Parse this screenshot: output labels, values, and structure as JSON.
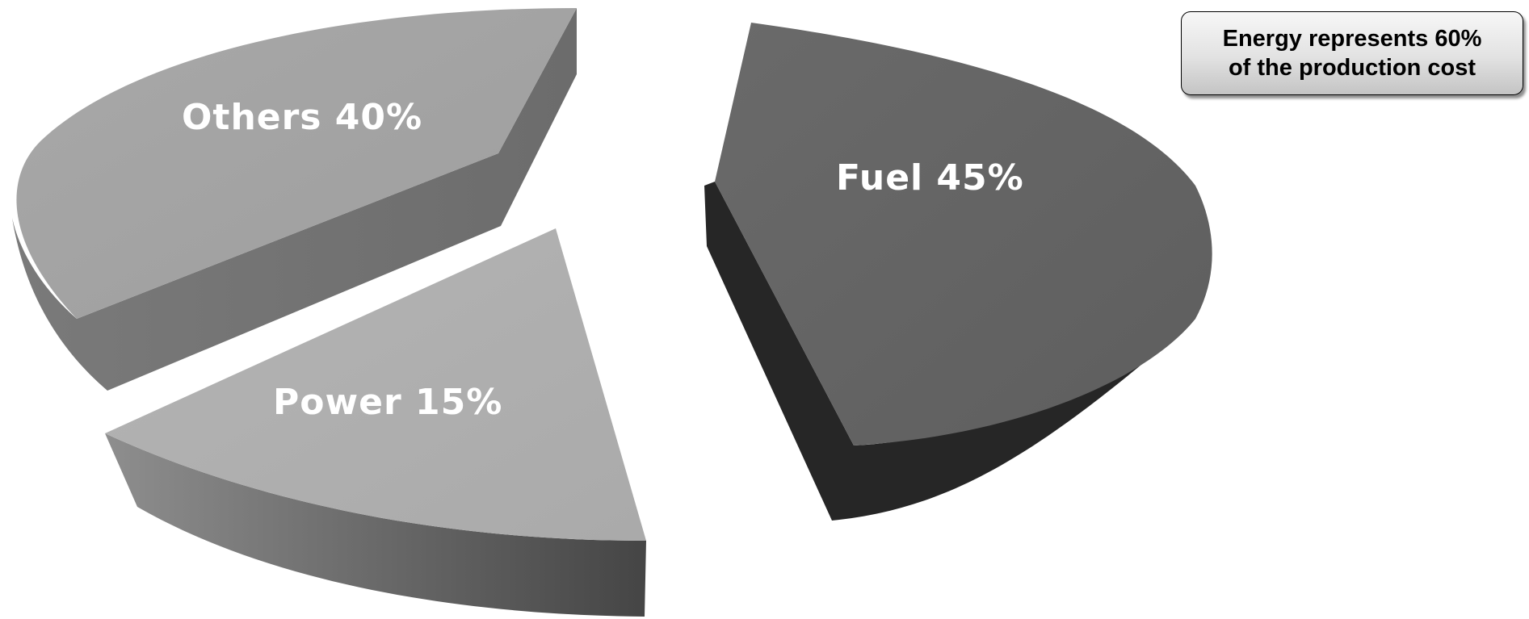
{
  "chart_data": {
    "type": "pie",
    "title": "",
    "slices": [
      {
        "label": "Fuel 45%",
        "category": "Fuel",
        "value": 45,
        "color": "#636363"
      },
      {
        "label": "Power 15%",
        "category": "Power",
        "value": 15,
        "color": "#b0b0b0"
      },
      {
        "label": "Others 40%",
        "category": "Others",
        "value": 40,
        "color": "#a2a2a2"
      }
    ],
    "style": "3d-exploded",
    "legend": "none"
  },
  "callout": {
    "line1": "Energy represents 60%",
    "line2": "of the production cost"
  }
}
